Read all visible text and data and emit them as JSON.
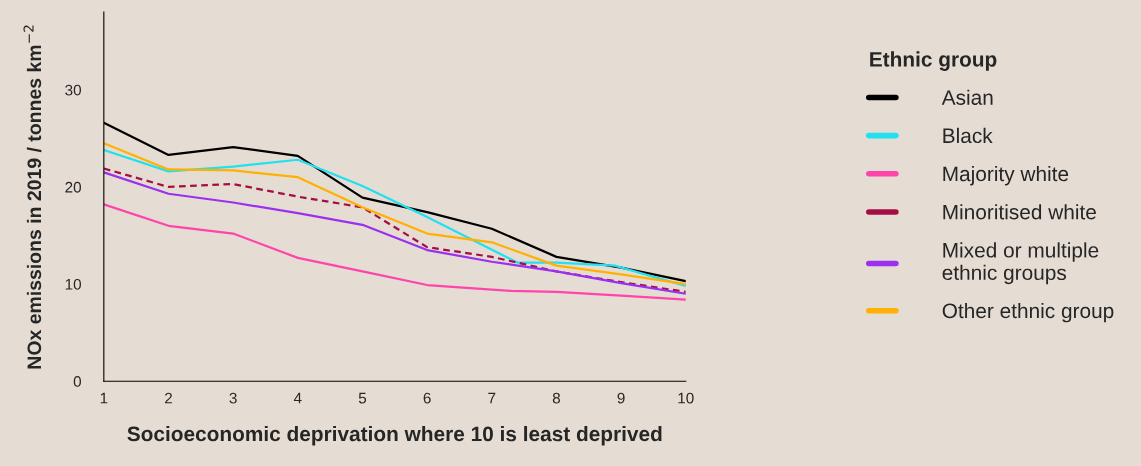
{
  "chart_data": {
    "type": "line",
    "xlabel": "Socioeconomic deprivation where 10 is least deprived",
    "ylabel": "NOx emissions in 2019 / tonnes km$^{−2}$",
    "legend_title": "Ethnic group",
    "x": [
      1,
      2,
      3,
      4,
      5,
      6,
      7,
      8,
      9,
      10
    ],
    "series": [
      {
        "name": "Asian",
        "color": "#000000",
        "values": [
          26.6,
          23.3,
          24.1,
          23.2,
          18.9,
          17.4,
          15.7,
          12.8,
          11.7,
          10.3
        ]
      },
      {
        "name": "Black",
        "color": "#22e0f0",
        "x": [
          1,
          2,
          3,
          4,
          5,
          6,
          7.4,
          8,
          8.9,
          10
        ],
        "values": [
          23.8,
          21.6,
          22.1,
          22.8,
          20.1,
          16.9,
          12.2,
          12.2,
          11.9,
          9.8
        ]
      },
      {
        "name": "Majority white",
        "color": "#ff44aa",
        "x": [
          1,
          2,
          3,
          4,
          5,
          6,
          7.3,
          8,
          9,
          10
        ],
        "values": [
          18.2,
          16.0,
          15.2,
          12.7,
          11.3,
          9.9,
          9.3,
          9.2,
          8.8,
          8.4
        ]
      },
      {
        "name": "Minoritised white",
        "color": "#a50e45",
        "line_style": "dashed",
        "values": [
          21.9,
          20.0,
          20.3,
          19.0,
          17.9,
          13.8,
          12.8,
          11.3,
          10.2,
          9.2
        ]
      },
      {
        "name": "Mixed or multiple\nethnic groups",
        "color": "#9b30f0",
        "values": [
          21.5,
          19.3,
          18.4,
          17.3,
          16.1,
          13.5,
          12.3,
          11.3,
          10.1,
          9.0
        ]
      },
      {
        "name": "Other ethnic group",
        "color": "#ffb000",
        "values": [
          24.5,
          21.8,
          21.7,
          21.0,
          17.9,
          15.2,
          14.3,
          11.9,
          11.0,
          10.0
        ]
      }
    ],
    "xlim": [
      1,
      10
    ],
    "xticks": [
      1,
      2,
      3,
      4,
      5,
      6,
      7,
      8,
      9,
      10
    ],
    "ylim": [
      0,
      38
    ],
    "yticks": [
      0,
      10,
      20,
      30
    ],
    "grid": false,
    "legend": "right",
    "marker": "none",
    "line_style": "solid"
  }
}
